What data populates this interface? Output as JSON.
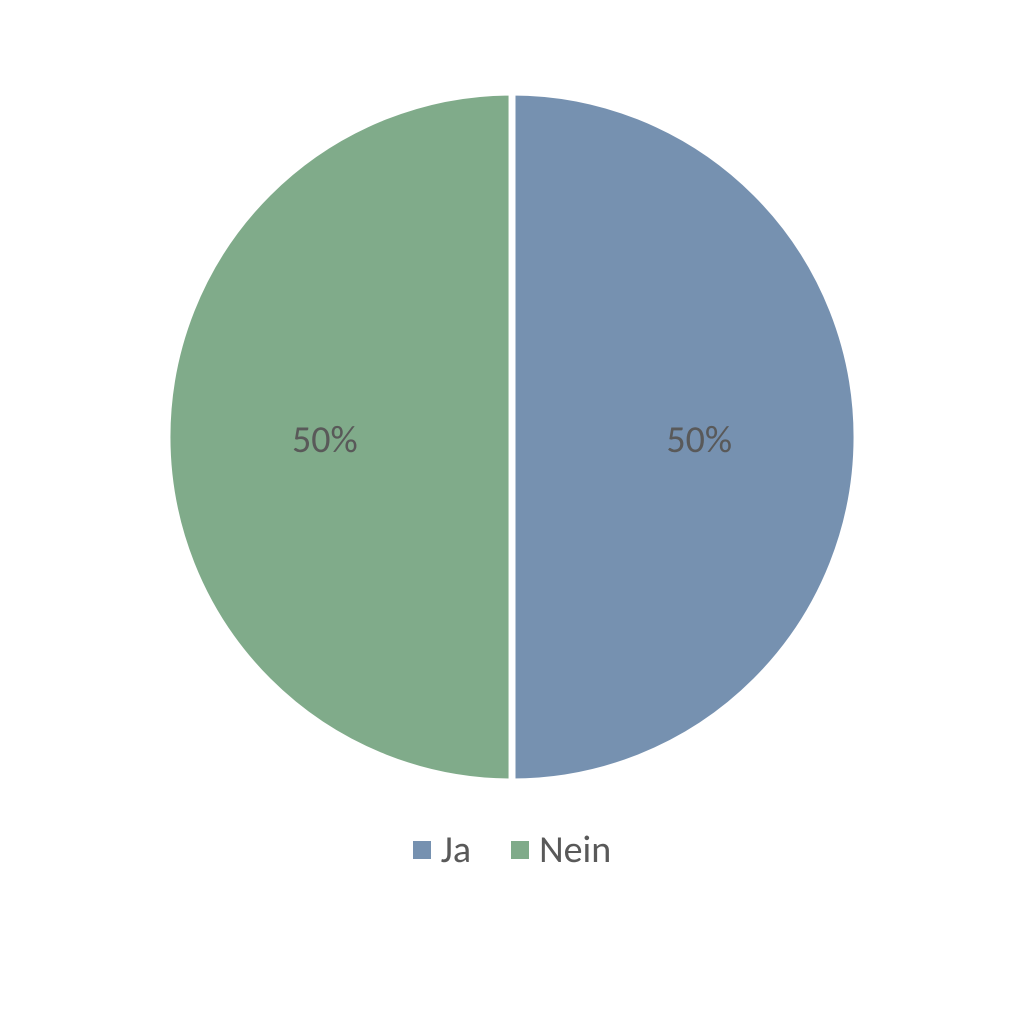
{
  "chart": {
    "type": "pie",
    "background_color": "#ffffff",
    "slices": [
      {
        "label": "Ja",
        "value": 50,
        "percent_text": "50%",
        "color": "#7691b0"
      },
      {
        "label": "Nein",
        "value": 50,
        "percent_text": "50%",
        "color": "#80ab8a"
      }
    ],
    "divider_color": "#ffffff",
    "divider_width": 2,
    "label_color": "#595959",
    "label_fontsize": 38,
    "legend": {
      "position": "bottom",
      "swatch_size": 18,
      "font_color": "#595959",
      "fontsize": 38
    }
  }
}
